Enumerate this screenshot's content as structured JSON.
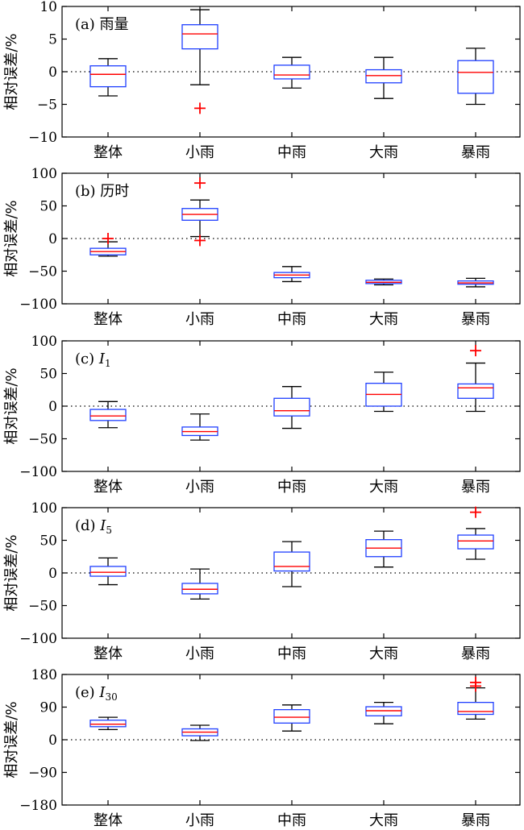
{
  "chart_data": [
    {
      "type": "box",
      "panel_label": "(a) 雨量",
      "ylabel": "相对误差/%",
      "categories": [
        "整体",
        "小雨",
        "中雨",
        "大雨",
        "暴雨"
      ],
      "ylim": [
        -10,
        10
      ],
      "yticks": [
        -10,
        -5,
        0,
        5,
        10
      ],
      "boxes": [
        {
          "whisker_low": -3.7,
          "q1": -2.3,
          "median": -0.4,
          "q3": 0.9,
          "whisker_high": 2.0,
          "outliers": []
        },
        {
          "whisker_low": -2.0,
          "q1": 3.5,
          "median": 5.8,
          "q3": 7.2,
          "whisker_high": 9.5,
          "outliers": [
            -5.6
          ]
        },
        {
          "whisker_low": -2.5,
          "q1": -1.1,
          "median": -0.5,
          "q3": 1.0,
          "whisker_high": 2.2,
          "outliers": []
        },
        {
          "whisker_low": -4.1,
          "q1": -1.7,
          "median": -0.6,
          "q3": 0.3,
          "whisker_high": 2.2,
          "outliers": []
        },
        {
          "whisker_low": -5.0,
          "q1": -3.3,
          "median": -0.1,
          "q3": 1.7,
          "whisker_high": 3.6,
          "outliers": []
        }
      ]
    },
    {
      "type": "box",
      "panel_label": "(b) 历时",
      "ylabel": "相对误差/%",
      "categories": [
        "整体",
        "小雨",
        "中雨",
        "大雨",
        "暴雨"
      ],
      "ylim": [
        -100,
        100
      ],
      "yticks": [
        -100,
        -50,
        0,
        50,
        100
      ],
      "boxes": [
        {
          "whisker_low": -27,
          "q1": -25,
          "median": -20,
          "q3": -15,
          "whisker_high": -5,
          "outliers": [
            0
          ]
        },
        {
          "whisker_low": 3,
          "q1": 28,
          "median": 37,
          "q3": 46,
          "whisker_high": 59,
          "outliers": [
            85,
            -3
          ]
        },
        {
          "whisker_low": -66,
          "q1": -60,
          "median": -56,
          "q3": -52,
          "whisker_high": -43,
          "outliers": []
        },
        {
          "whisker_low": -71,
          "q1": -69,
          "median": -67,
          "q3": -64,
          "whisker_high": -62,
          "outliers": []
        },
        {
          "whisker_low": -74,
          "q1": -70,
          "median": -68,
          "q3": -65,
          "whisker_high": -61,
          "outliers": []
        }
      ]
    },
    {
      "type": "box",
      "panel_label": "(c) ",
      "var": "I",
      "sub": "1",
      "ylabel": "相对误差/%",
      "categories": [
        "整体",
        "小雨",
        "中雨",
        "大雨",
        "暴雨"
      ],
      "ylim": [
        -100,
        100
      ],
      "yticks": [
        -100,
        -50,
        0,
        50,
        100
      ],
      "boxes": [
        {
          "whisker_low": -33,
          "q1": -22,
          "median": -15,
          "q3": -5,
          "whisker_high": 7,
          "outliers": []
        },
        {
          "whisker_low": -52,
          "q1": -45,
          "median": -39,
          "q3": -32,
          "whisker_high": -12,
          "outliers": []
        },
        {
          "whisker_low": -34,
          "q1": -15,
          "median": -7,
          "q3": 12,
          "whisker_high": 30,
          "outliers": []
        },
        {
          "whisker_low": -8,
          "q1": 0,
          "median": 18,
          "q3": 35,
          "whisker_high": 52,
          "outliers": []
        },
        {
          "whisker_low": -8,
          "q1": 12,
          "median": 28,
          "q3": 34,
          "whisker_high": 66,
          "outliers": [
            85
          ]
        }
      ]
    },
    {
      "type": "box",
      "panel_label": "(d) ",
      "var": "I",
      "sub": "5",
      "ylabel": "相对误差/%",
      "categories": [
        "整体",
        "小雨",
        "中雨",
        "大雨",
        "暴雨"
      ],
      "ylim": [
        -100,
        100
      ],
      "yticks": [
        -100,
        -50,
        0,
        50,
        100
      ],
      "boxes": [
        {
          "whisker_low": -18,
          "q1": -5,
          "median": 1,
          "q3": 10,
          "whisker_high": 23,
          "outliers": []
        },
        {
          "whisker_low": -40,
          "q1": -32,
          "median": -25,
          "q3": -16,
          "whisker_high": 6,
          "outliers": []
        },
        {
          "whisker_low": -21,
          "q1": 3,
          "median": 10,
          "q3": 32,
          "whisker_high": 48,
          "outliers": []
        },
        {
          "whisker_low": 9,
          "q1": 25,
          "median": 38,
          "q3": 51,
          "whisker_high": 64,
          "outliers": []
        },
        {
          "whisker_low": 21,
          "q1": 37,
          "median": 49,
          "q3": 58,
          "whisker_high": 68,
          "outliers": [
            93
          ]
        }
      ]
    },
    {
      "type": "box",
      "panel_label": "(e) ",
      "var": "I",
      "sub": "30",
      "ylabel": "相对误差/%",
      "categories": [
        "整体",
        "小雨",
        "中雨",
        "大雨",
        "暴雨"
      ],
      "ylim": [
        -180,
        180
      ],
      "yticks": [
        -180,
        -90,
        0,
        90,
        180
      ],
      "boxes": [
        {
          "whisker_low": 28,
          "q1": 36,
          "median": 43,
          "q3": 54,
          "whisker_high": 62,
          "outliers": []
        },
        {
          "whisker_low": -2,
          "q1": 11,
          "median": 21,
          "q3": 30,
          "whisker_high": 40,
          "outliers": []
        },
        {
          "whisker_low": 24,
          "q1": 46,
          "median": 62,
          "q3": 83,
          "whisker_high": 96,
          "outliers": []
        },
        {
          "whisker_low": 44,
          "q1": 66,
          "median": 80,
          "q3": 91,
          "whisker_high": 103,
          "outliers": []
        },
        {
          "whisker_low": 57,
          "q1": 70,
          "median": 78,
          "q3": 103,
          "whisker_high": 143,
          "outliers": [
            148,
            158
          ]
        }
      ]
    }
  ],
  "colors": {
    "box": "#1f3fff",
    "median": "#ff0000",
    "outlier": "#ff0000",
    "whisker": "#000000",
    "zero_line": "#000000"
  }
}
